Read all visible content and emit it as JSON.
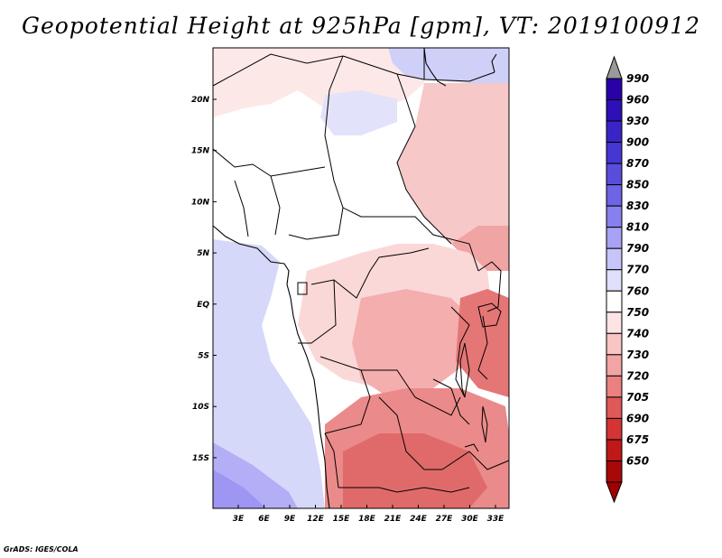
{
  "title": "Geopotential Height at 925hPa [gpm], VT: 2019100912",
  "credit": "GrADS: IGES/COLA",
  "y_ticks": [
    "20N",
    "15N",
    "10N",
    "5N",
    "EQ",
    "5S",
    "10S",
    "15S"
  ],
  "x_ticks": [
    "3E",
    "6E",
    "9E",
    "12E",
    "15E",
    "18E",
    "21E",
    "24E",
    "27E",
    "30E",
    "33E"
  ],
  "colorbar": {
    "levels": [
      "990",
      "960",
      "930",
      "900",
      "870",
      "850",
      "830",
      "810",
      "790",
      "770",
      "760",
      "750",
      "740",
      "730",
      "720",
      "705",
      "690",
      "675",
      "650"
    ],
    "colors": [
      "#2a00a8",
      "#2f0fb8",
      "#3a24c8",
      "#4636d2",
      "#5a4ddc",
      "#6e64e6",
      "#8880ee",
      "#a8a2f4",
      "#c6c4f8",
      "#e0e0fa",
      "#ffffff",
      "#fde4e4",
      "#f9c4c4",
      "#f3a4a4",
      "#eb8080",
      "#e05858",
      "#d43434",
      "#c01818",
      "#a80808"
    ],
    "top_arrow_color": "#9a9a9a",
    "bottom_arrow_color": "#a00000"
  },
  "colors": {
    "ocean_blue": "#d6d8fa",
    "deep_blue": "#9e96f2",
    "light_red": "#fde4e4",
    "mid_red": "#f4a8a8",
    "strong_red": "#e26a6a"
  }
}
